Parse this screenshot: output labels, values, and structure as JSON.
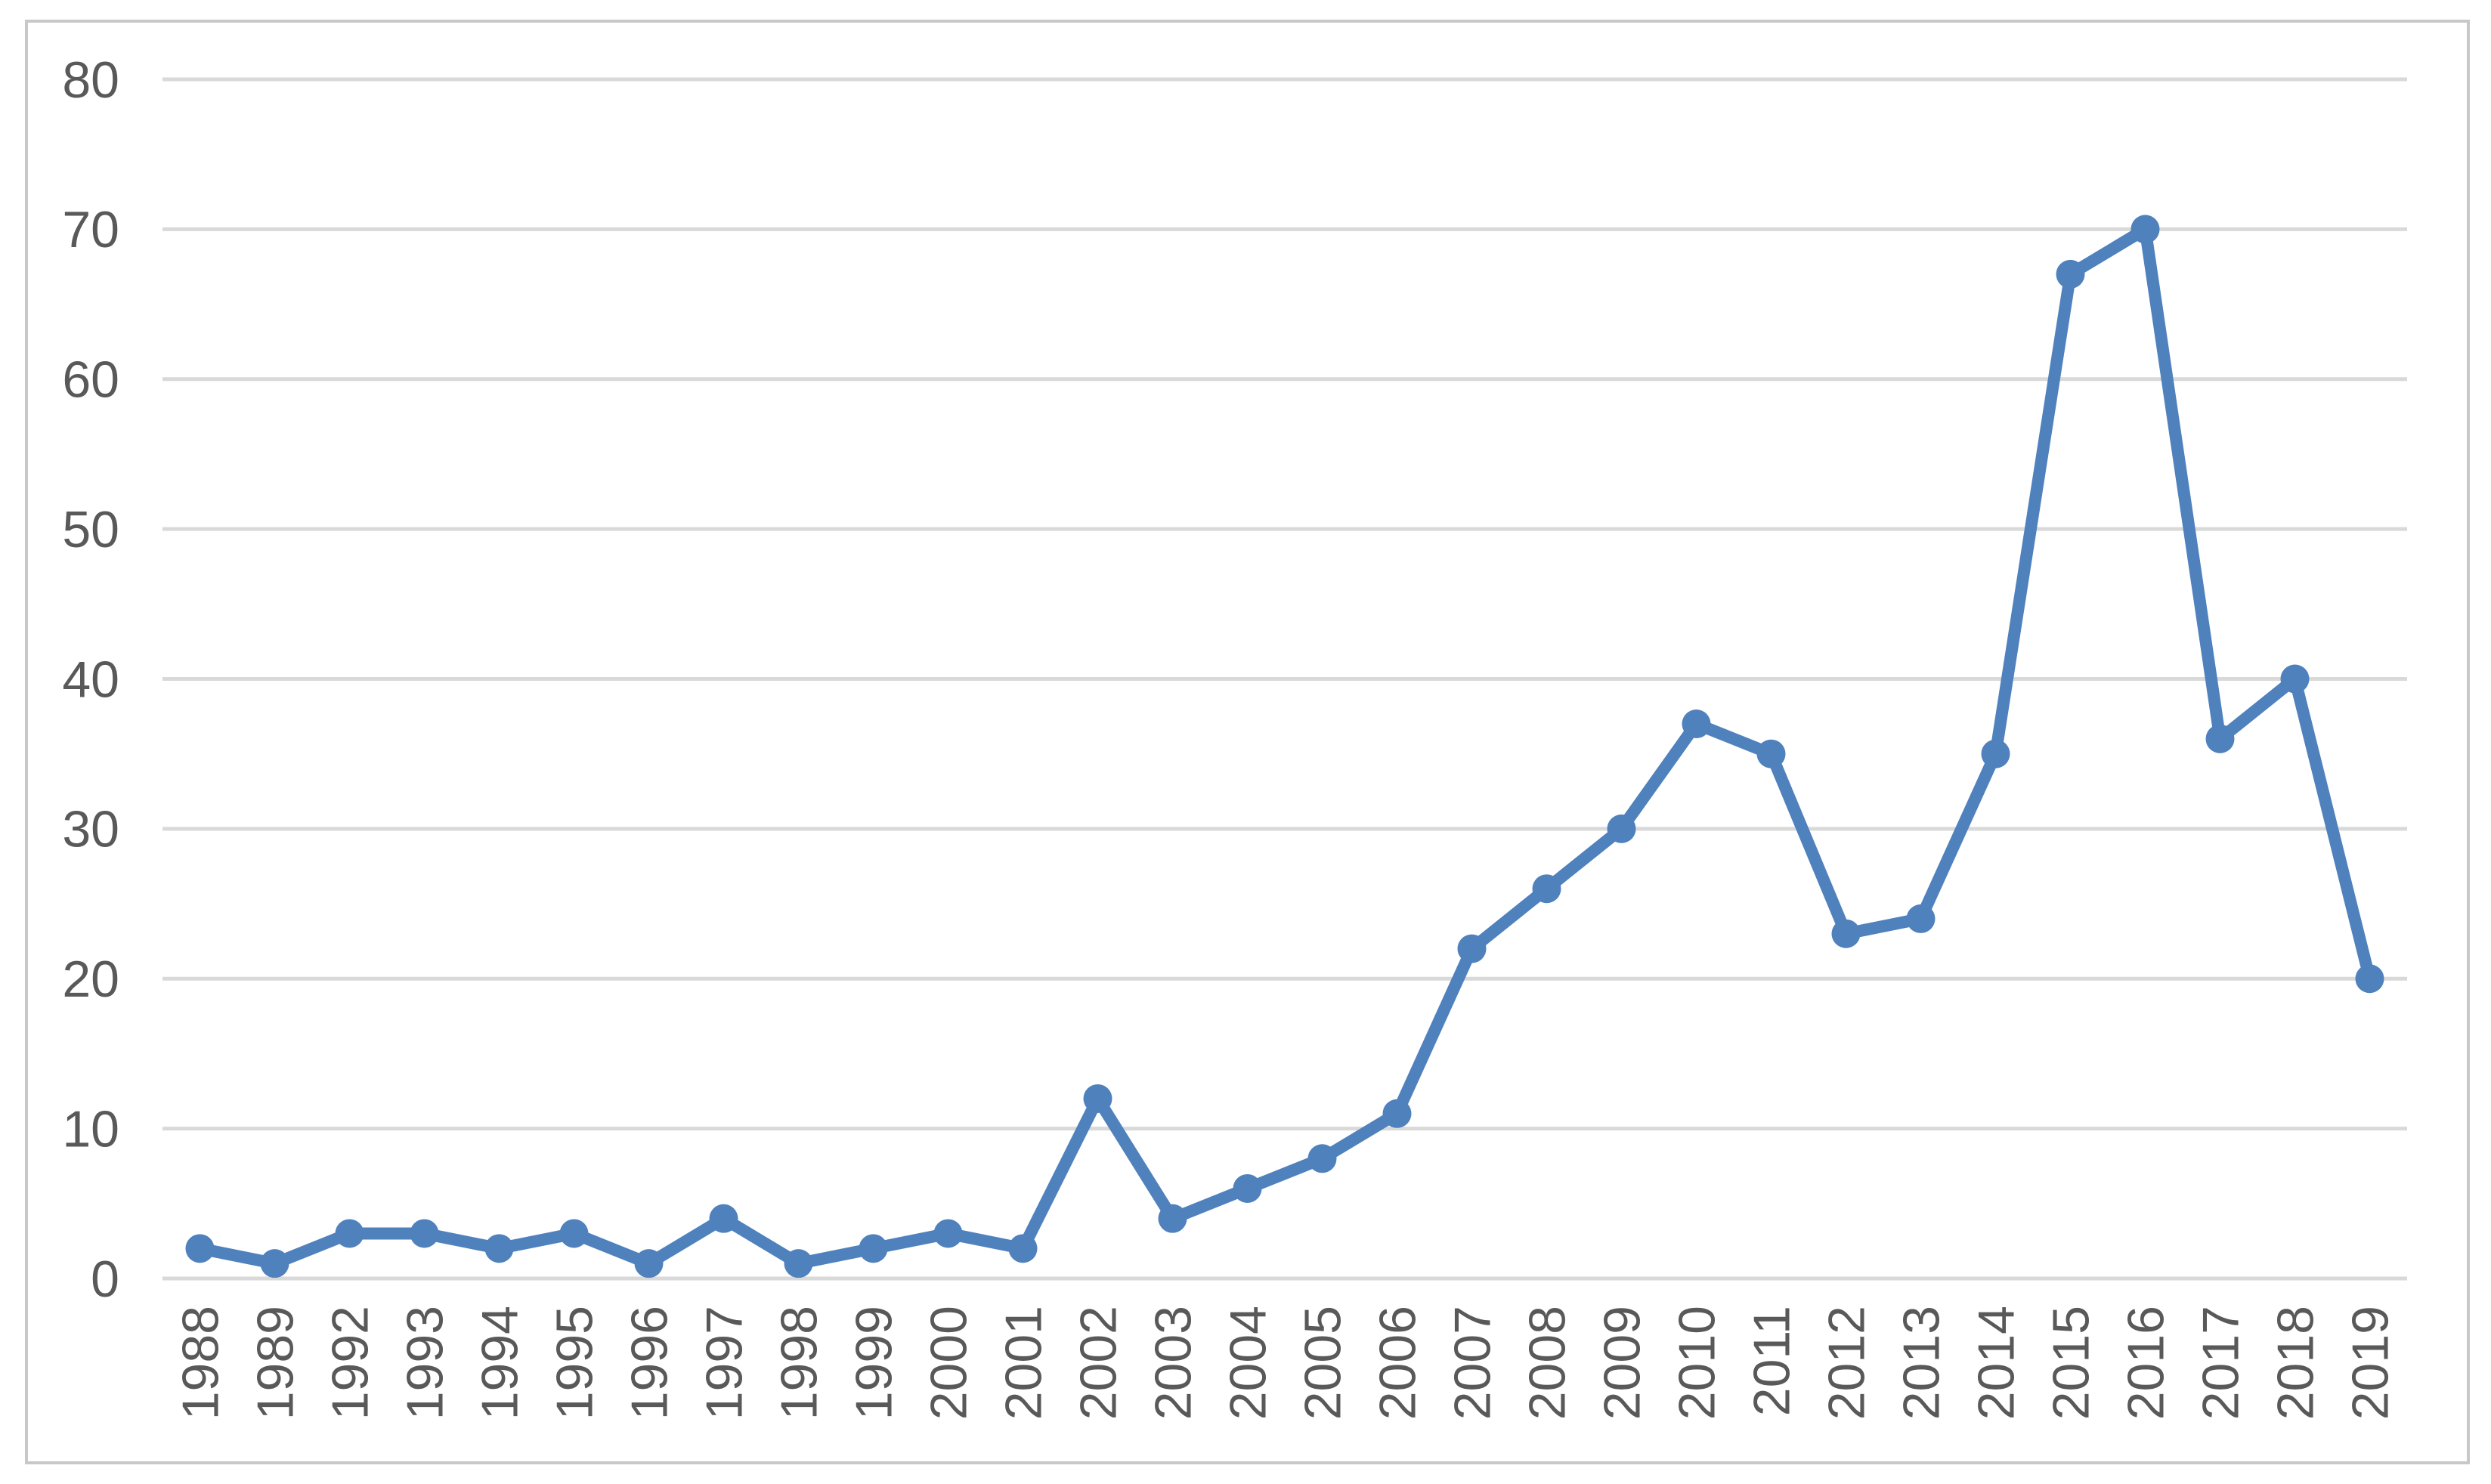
{
  "chart_data": {
    "type": "line",
    "title": "",
    "xlabel": "",
    "ylabel": "",
    "categories": [
      "1988",
      "1989",
      "1992",
      "1993",
      "1994",
      "1995",
      "1996",
      "1997",
      "1998",
      "1999",
      "2000",
      "2001",
      "2002",
      "2003",
      "2004",
      "2005",
      "2006",
      "2007",
      "2008",
      "2009",
      "2010",
      "2011",
      "2012",
      "2013",
      "2014",
      "2015",
      "2016",
      "2017",
      "2018",
      "2019"
    ],
    "values": [
      2,
      1,
      3,
      3,
      2,
      3,
      1,
      4,
      1,
      2,
      3,
      2,
      12,
      4,
      6,
      8,
      11,
      22,
      26,
      30,
      37,
      35,
      23,
      24,
      35,
      67,
      70,
      36,
      40,
      20
    ],
    "ylim": [
      0,
      80
    ],
    "ytick_step": 10,
    "ytick_labels": [
      "0",
      "10",
      "20",
      "30",
      "40",
      "50",
      "60",
      "70",
      "80"
    ],
    "grid": "horizontal",
    "legend": "none",
    "series_color": "#4f81bd",
    "marker": "circle",
    "gridline_color": "#d9d9d9",
    "axis_label_color": "#595959",
    "border_color": "#c9c7c7",
    "background_color": "#ffffff"
  }
}
